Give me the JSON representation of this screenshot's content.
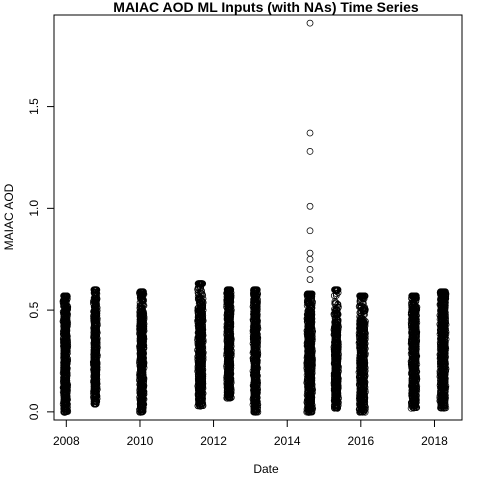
{
  "chart_data": {
    "type": "scatter",
    "title": "MAIAC AOD ML Inputs (with NAs) Time Series",
    "xlabel": "Date",
    "ylabel": "MAIAC AOD",
    "xlim": [
      "2007-09-01",
      "2018-10-01"
    ],
    "ylim": [
      -0.04,
      1.95
    ],
    "x_ticks": [
      {
        "value": "2008-01-01",
        "label": "2008"
      },
      {
        "value": "2010-01-01",
        "label": "2010"
      },
      {
        "value": "2012-01-01",
        "label": "2012"
      },
      {
        "value": "2014-01-01",
        "label": "2014"
      },
      {
        "value": "2016-01-01",
        "label": "2016"
      },
      {
        "value": "2018-01-01",
        "label": "2018"
      }
    ],
    "y_ticks": [
      {
        "value": 0.0,
        "label": "0.0"
      },
      {
        "value": 0.5,
        "label": "0.5"
      },
      {
        "value": 1.0,
        "label": "1.0"
      },
      {
        "value": 1.5,
        "label": "1.5"
      }
    ],
    "grid": false,
    "legend": "none",
    "point_color": "#000000",
    "marker": "open-circle",
    "clusters": [
      {
        "start": "2007-12-05",
        "end": "2008-01-10",
        "ymin": 0.0,
        "ymax": 0.57,
        "dense_max": 0.5
      },
      {
        "start": "2008-10-01",
        "end": "2008-10-30",
        "ymin": 0.04,
        "ymax": 0.6,
        "dense_max": 0.5
      },
      {
        "start": "2010-01-01",
        "end": "2010-02-05",
        "ymin": 0.0,
        "ymax": 0.59,
        "dense_max": 0.5
      },
      {
        "start": "2011-08-01",
        "end": "2011-09-15",
        "ymin": 0.03,
        "ymax": 0.63,
        "dense_max": 0.52
      },
      {
        "start": "2012-05-15",
        "end": "2012-06-20",
        "ymin": 0.07,
        "ymax": 0.6,
        "dense_max": 0.55
      },
      {
        "start": "2013-02-01",
        "end": "2013-03-10",
        "ymin": 0.0,
        "ymax": 0.6,
        "dense_max": 0.55
      },
      {
        "start": "2014-07-20",
        "end": "2014-09-05",
        "ymin": 0.0,
        "ymax": 0.58,
        "dense_max": 0.5
      },
      {
        "start": "2015-04-15",
        "end": "2015-05-20",
        "ymin": 0.02,
        "ymax": 0.6,
        "dense_max": 0.45
      },
      {
        "start": "2015-12-20",
        "end": "2016-02-10",
        "ymin": 0.0,
        "ymax": 0.57,
        "dense_max": 0.45
      },
      {
        "start": "2017-05-20",
        "end": "2017-07-05",
        "ymin": 0.02,
        "ymax": 0.57,
        "dense_max": 0.5
      },
      {
        "start": "2018-03-01",
        "end": "2018-04-20",
        "ymin": 0.02,
        "ymax": 0.59,
        "dense_max": 0.55
      }
    ],
    "outliers": [
      {
        "x": "2014-08-15",
        "y": 1.91
      },
      {
        "x": "2014-08-15",
        "y": 1.37
      },
      {
        "x": "2014-08-15",
        "y": 1.28
      },
      {
        "x": "2014-08-15",
        "y": 1.01
      },
      {
        "x": "2014-08-15",
        "y": 0.89
      },
      {
        "x": "2014-08-15",
        "y": 0.78
      },
      {
        "x": "2014-08-15",
        "y": 0.75
      },
      {
        "x": "2014-08-15",
        "y": 0.7
      },
      {
        "x": "2014-08-15",
        "y": 0.65
      },
      {
        "x": "2015-04-25",
        "y": 0.02
      },
      {
        "x": "2011-09-01",
        "y": 0.63
      },
      {
        "x": "2016-01-10",
        "y": 0.0
      }
    ]
  }
}
